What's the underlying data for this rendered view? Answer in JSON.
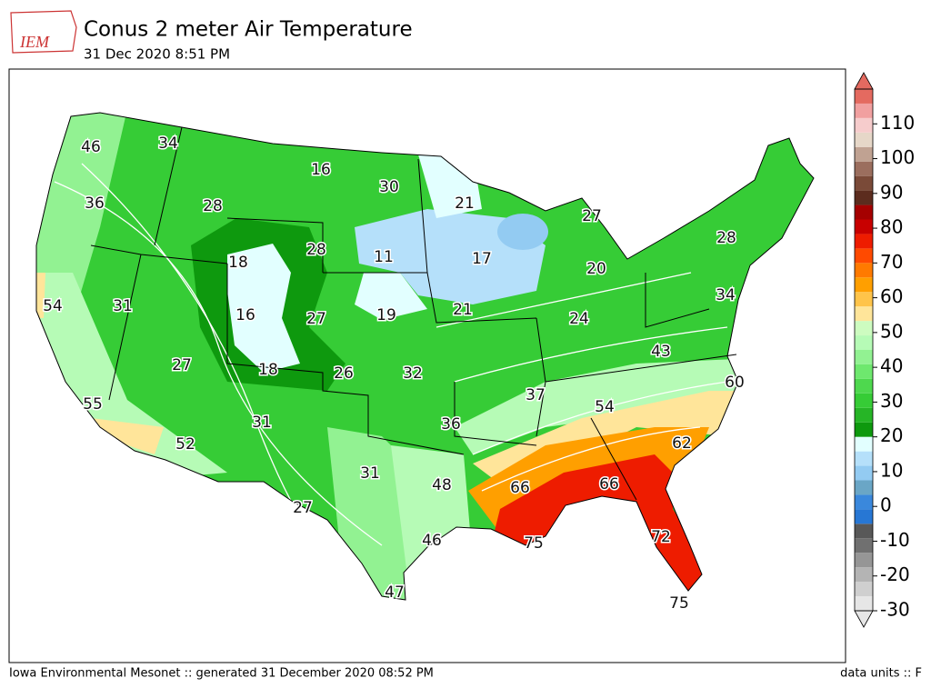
{
  "header": {
    "logo": "IEM",
    "title": "Conus 2 meter Air Temperature",
    "subtitle": "31 Dec 2020 8:51 PM"
  },
  "footer": {
    "left": "Iowa Environmental Mesonet :: generated 31 December 2020 08:52 PM",
    "right": "data units :: F"
  },
  "colorbar": {
    "lim": [
      -30,
      120
    ],
    "ticks": [
      -30,
      -20,
      -10,
      0,
      10,
      20,
      30,
      40,
      50,
      60,
      70,
      80,
      90,
      100,
      110
    ],
    "colors": [
      "#e6e6e6",
      "#cfcfcf",
      "#b4b4b4",
      "#969696",
      "#707070",
      "#585858",
      "#2777d4",
      "#3a88dc",
      "#6aa6c6",
      "#93cbf2",
      "#b5e0fa",
      "#e2ffff",
      "#0e990e",
      "#26b526",
      "#36cc36",
      "#4ed84e",
      "#6ee86e",
      "#92f292",
      "#b6fbb6",
      "#cdfcc0",
      "#ffe59a",
      "#ffc44a",
      "#ff9f00",
      "#ff7a00",
      "#ff4a00",
      "#ee1c00",
      "#c80000",
      "#a50000",
      "#5c2c1e",
      "#7a4a38",
      "#9b6e5e",
      "#c0a292",
      "#e6d7c8",
      "#f6cccc",
      "#f1a0a0",
      "#e46a60"
    ]
  },
  "map": {
    "labels": [
      46,
      34,
      16,
      30,
      36,
      28,
      21,
      27,
      28,
      11,
      17,
      28,
      18,
      20,
      54,
      31,
      16,
      27,
      19,
      21,
      24,
      34,
      43,
      27,
      18,
      26,
      32,
      37,
      60,
      55,
      54,
      31,
      36,
      62,
      52,
      31,
      48,
      66,
      66,
      27,
      46,
      75,
      72,
      47,
      75
    ]
  }
}
